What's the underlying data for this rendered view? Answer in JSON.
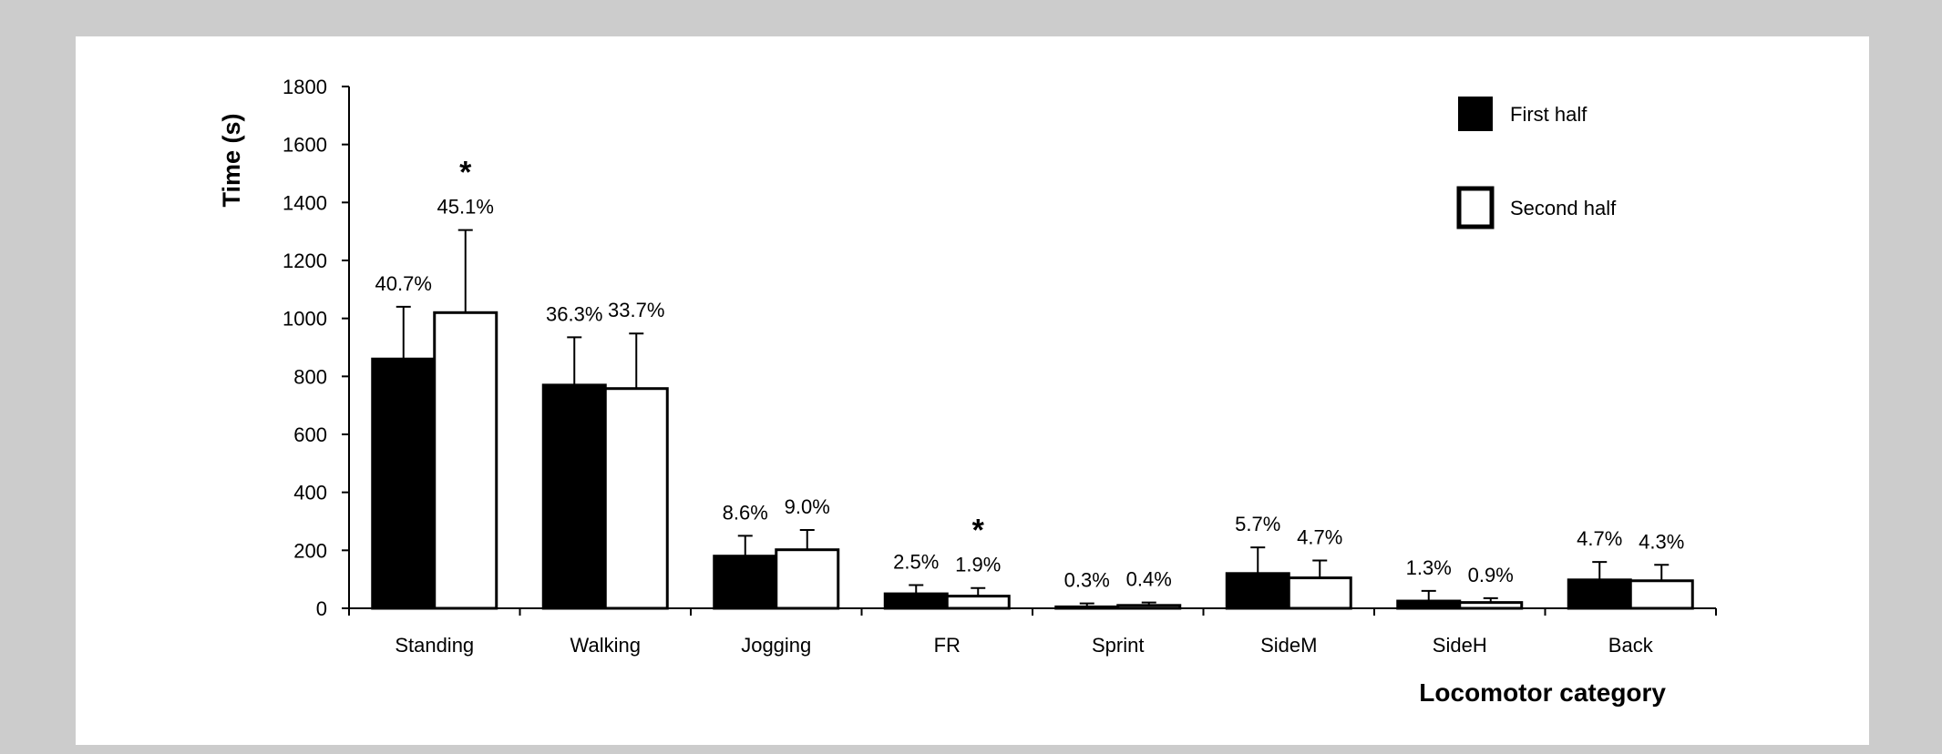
{
  "chart_data": {
    "type": "bar",
    "ylabel": "Time (s)",
    "xlabel": "Locomotor category",
    "ylim": [
      0,
      1800
    ],
    "yticks": [
      0,
      200,
      400,
      600,
      800,
      1000,
      1200,
      1400,
      1600,
      1800
    ],
    "categories": [
      "Standing",
      "Walking",
      "Jogging",
      "FR",
      "Sprint",
      "SideM",
      "SideH",
      "Back"
    ],
    "series": [
      {
        "name": "First half",
        "fill": "#000000",
        "values": [
          860,
          770,
          180,
          50,
          5,
          120,
          25,
          98
        ],
        "error_upper": [
          1040,
          935,
          250,
          80,
          17,
          210,
          60,
          160
        ],
        "labels": [
          "40.7%",
          "36.3%",
          "8.6%",
          "2.5%",
          "0.3%",
          "5.7%",
          "1.3%",
          "4.7%"
        ],
        "significance": [
          "",
          "",
          "",
          "",
          "",
          "",
          "",
          ""
        ]
      },
      {
        "name": "Second half",
        "fill": "#ffffff",
        "values": [
          1020,
          758,
          202,
          42,
          10,
          105,
          20,
          95
        ],
        "error_upper": [
          1305,
          948,
          270,
          70,
          20,
          165,
          35,
          150
        ],
        "labels": [
          "45.1%",
          "33.7%",
          "9.0%",
          "1.9%",
          "0.4%",
          "4.7%",
          "0.9%",
          "4.3%"
        ],
        "significance": [
          "*",
          "",
          "",
          "*",
          "",
          "",
          "",
          ""
        ]
      }
    ],
    "legend_position": "top-right",
    "grid": false
  }
}
